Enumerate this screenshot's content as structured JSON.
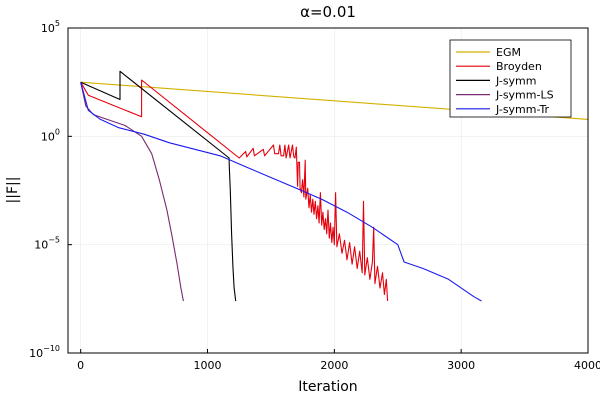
{
  "chart_data": {
    "type": "line",
    "title": "α=0.01",
    "xlabel": "Iteration",
    "ylabel": "||F||",
    "xlim": [
      -100,
      4000
    ],
    "ylim_log10": [
      -10,
      5
    ],
    "yscale": "log",
    "grid": true,
    "legend_position": "top-right",
    "x_ticks": [
      {
        "value": 0,
        "label": "0"
      },
      {
        "value": 1000,
        "label": "1000"
      },
      {
        "value": 2000,
        "label": "2000"
      },
      {
        "value": 3000,
        "label": "3000"
      },
      {
        "value": 4000,
        "label": "4000"
      }
    ],
    "y_ticks": [
      {
        "value": -10,
        "base": "10",
        "exp": "−10"
      },
      {
        "value": -5,
        "base": "10",
        "exp": "−5"
      },
      {
        "value": 0,
        "base": "10",
        "exp": "0"
      },
      {
        "value": 5,
        "base": "10",
        "exp": "5"
      }
    ],
    "series": [
      {
        "name": "EGM",
        "color": "#d4b000",
        "log10_points": [
          [
            0,
            2.5
          ],
          [
            4000,
            0.78
          ]
        ]
      },
      {
        "name": "Broyden",
        "color": "#e6000c",
        "log10_points": [
          [
            0,
            2.5
          ],
          [
            60,
            1.9
          ],
          [
            480,
            0.9
          ],
          [
            480,
            2.6
          ],
          [
            1250,
            -1.0
          ],
          [
            1300,
            -0.7
          ],
          [
            1310,
            -0.95
          ],
          [
            1360,
            -0.55
          ],
          [
            1370,
            -0.9
          ],
          [
            1440,
            -0.6
          ],
          [
            1450,
            -0.9
          ],
          [
            1520,
            -0.4
          ],
          [
            1530,
            -0.8
          ],
          [
            1560,
            -0.8
          ],
          [
            1570,
            -0.4
          ],
          [
            1580,
            -0.9
          ],
          [
            1600,
            -0.9
          ],
          [
            1610,
            -0.4
          ],
          [
            1620,
            -1.0
          ],
          [
            1640,
            -0.4
          ],
          [
            1650,
            -1.0
          ],
          [
            1670,
            -0.4
          ],
          [
            1680,
            -0.95
          ],
          [
            1690,
            -1.0
          ],
          [
            1700,
            -0.5
          ],
          [
            1710,
            -2.3
          ],
          [
            1715,
            -1.2
          ],
          [
            1725,
            -1.2
          ],
          [
            1730,
            -2.4
          ],
          [
            1740,
            -2.6
          ],
          [
            1750,
            -2.0
          ],
          [
            1760,
            -2.8
          ],
          [
            1770,
            -1.1
          ],
          [
            1775,
            -2.9
          ],
          [
            1790,
            -2.4
          ],
          [
            1800,
            -3.3
          ],
          [
            1810,
            -2.7
          ],
          [
            1820,
            -3.5
          ],
          [
            1830,
            -2.9
          ],
          [
            1840,
            -3.6
          ],
          [
            1850,
            -3.0
          ],
          [
            1860,
            -3.8
          ],
          [
            1870,
            -3.2
          ],
          [
            1880,
            -4.0
          ],
          [
            1890,
            -2.6
          ],
          [
            1900,
            -4.1
          ],
          [
            1910,
            -3.5
          ],
          [
            1920,
            -4.3
          ],
          [
            1930,
            -3.8
          ],
          [
            1940,
            -4.5
          ],
          [
            1950,
            -3.4
          ],
          [
            1960,
            -4.7
          ],
          [
            1970,
            -4.0
          ],
          [
            1980,
            -4.9
          ],
          [
            1990,
            -4.2
          ],
          [
            2000,
            -5.0
          ],
          [
            2010,
            -2.6
          ],
          [
            2020,
            -5.1
          ],
          [
            2040,
            -4.5
          ],
          [
            2060,
            -5.4
          ],
          [
            2080,
            -4.8
          ],
          [
            2100,
            -5.7
          ],
          [
            2120,
            -4.9
          ],
          [
            2140,
            -5.9
          ],
          [
            2160,
            -5.1
          ],
          [
            2180,
            -6.1
          ],
          [
            2200,
            -5.3
          ],
          [
            2220,
            -6.3
          ],
          [
            2230,
            -3.0
          ],
          [
            2240,
            -6.4
          ],
          [
            2260,
            -5.6
          ],
          [
            2280,
            -6.6
          ],
          [
            2300,
            -5.8
          ],
          [
            2310,
            -4.2
          ],
          [
            2320,
            -6.8
          ],
          [
            2340,
            -6.0
          ],
          [
            2360,
            -7.0
          ],
          [
            2380,
            -6.3
          ],
          [
            2395,
            -7.3
          ],
          [
            2410,
            -6.6
          ],
          [
            2420,
            -7.6
          ]
        ]
      },
      {
        "name": "J-symm",
        "color": "#000000",
        "log10_points": [
          [
            0,
            2.5
          ],
          [
            310,
            1.7
          ],
          [
            310,
            3.0
          ],
          [
            1170,
            -1.0
          ],
          [
            1172,
            -1.4
          ],
          [
            1180,
            -2.5
          ],
          [
            1190,
            -4.5
          ],
          [
            1200,
            -6.0
          ],
          [
            1210,
            -7.0
          ],
          [
            1218,
            -7.4
          ],
          [
            1222,
            -7.6
          ]
        ]
      },
      {
        "name": "J-symm-LS",
        "color": "#7a2a70",
        "log10_points": [
          [
            0,
            2.5
          ],
          [
            40,
            1.4
          ],
          [
            100,
            1.0
          ],
          [
            200,
            0.8
          ],
          [
            350,
            0.5
          ],
          [
            480,
            0.0
          ],
          [
            560,
            -0.8
          ],
          [
            620,
            -2.0
          ],
          [
            680,
            -3.4
          ],
          [
            720,
            -4.6
          ],
          [
            760,
            -5.9
          ],
          [
            790,
            -7.0
          ],
          [
            810,
            -7.6
          ]
        ]
      },
      {
        "name": "J-symm-Tr",
        "color": "#1a1aee",
        "log10_points": [
          [
            0,
            2.5
          ],
          [
            60,
            1.2
          ],
          [
            150,
            0.8
          ],
          [
            300,
            0.4
          ],
          [
            500,
            0.1
          ],
          [
            700,
            -0.3
          ],
          [
            900,
            -0.6
          ],
          [
            1100,
            -0.9
          ],
          [
            1300,
            -1.4
          ],
          [
            1500,
            -1.9
          ],
          [
            1700,
            -2.4
          ],
          [
            1900,
            -2.9
          ],
          [
            2100,
            -3.5
          ],
          [
            2300,
            -4.2
          ],
          [
            2400,
            -4.6
          ],
          [
            2500,
            -5.0
          ],
          [
            2550,
            -5.8
          ],
          [
            2700,
            -6.1
          ],
          [
            2900,
            -6.6
          ],
          [
            3100,
            -7.4
          ],
          [
            3160,
            -7.6
          ]
        ]
      }
    ]
  }
}
